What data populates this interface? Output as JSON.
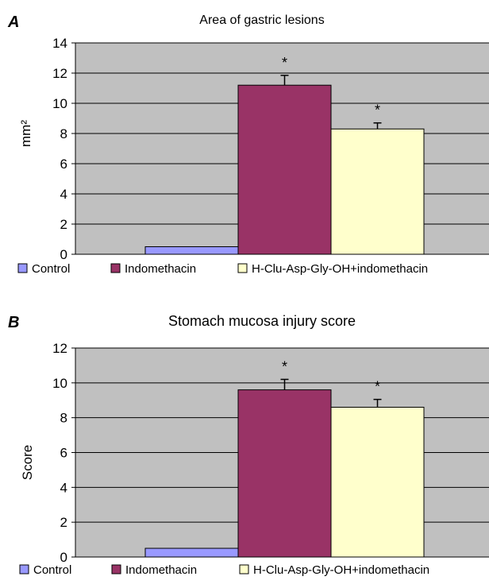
{
  "chart_data": [
    {
      "panel": "A",
      "type": "bar",
      "title": "Area of gastric lesions",
      "ylabel": "mm²",
      "xlabel": "",
      "ylim": [
        0,
        14
      ],
      "yticks": [
        0,
        2,
        4,
        6,
        8,
        10,
        12,
        14
      ],
      "grid": true,
      "legend_position": "bottom",
      "series": [
        {
          "name": "Control",
          "value": 0.5,
          "error": 0,
          "significance": "",
          "color": "#9999ff"
        },
        {
          "name": "Indomethacin",
          "value": 11.2,
          "error": 0.65,
          "significance": "*",
          "color": "#993366"
        },
        {
          "name": "H-Clu-Asp-Gly-OH+indomethacin",
          "value": 8.3,
          "error": 0.4,
          "significance": "*",
          "color": "#ffffcc"
        }
      ]
    },
    {
      "panel": "B",
      "type": "bar",
      "title": "Stomach mucosa injury score",
      "ylabel": "Score",
      "xlabel": "",
      "ylim": [
        0,
        12
      ],
      "yticks": [
        0,
        2,
        4,
        6,
        8,
        10,
        12
      ],
      "grid": true,
      "legend_position": "bottom",
      "series": [
        {
          "name": "Control",
          "value": 0.5,
          "error": 0,
          "significance": "",
          "color": "#9999ff"
        },
        {
          "name": "Indomethacin",
          "value": 9.6,
          "error": 0.6,
          "significance": "*",
          "color": "#993366"
        },
        {
          "name": "H-Clu-Asp-Gly-OH+indomethacin",
          "value": 8.6,
          "error": 0.45,
          "significance": "*",
          "color": "#ffffcc"
        }
      ]
    }
  ],
  "colors": {
    "plot_background": "#c0c0c0",
    "gridline": "#000000"
  }
}
